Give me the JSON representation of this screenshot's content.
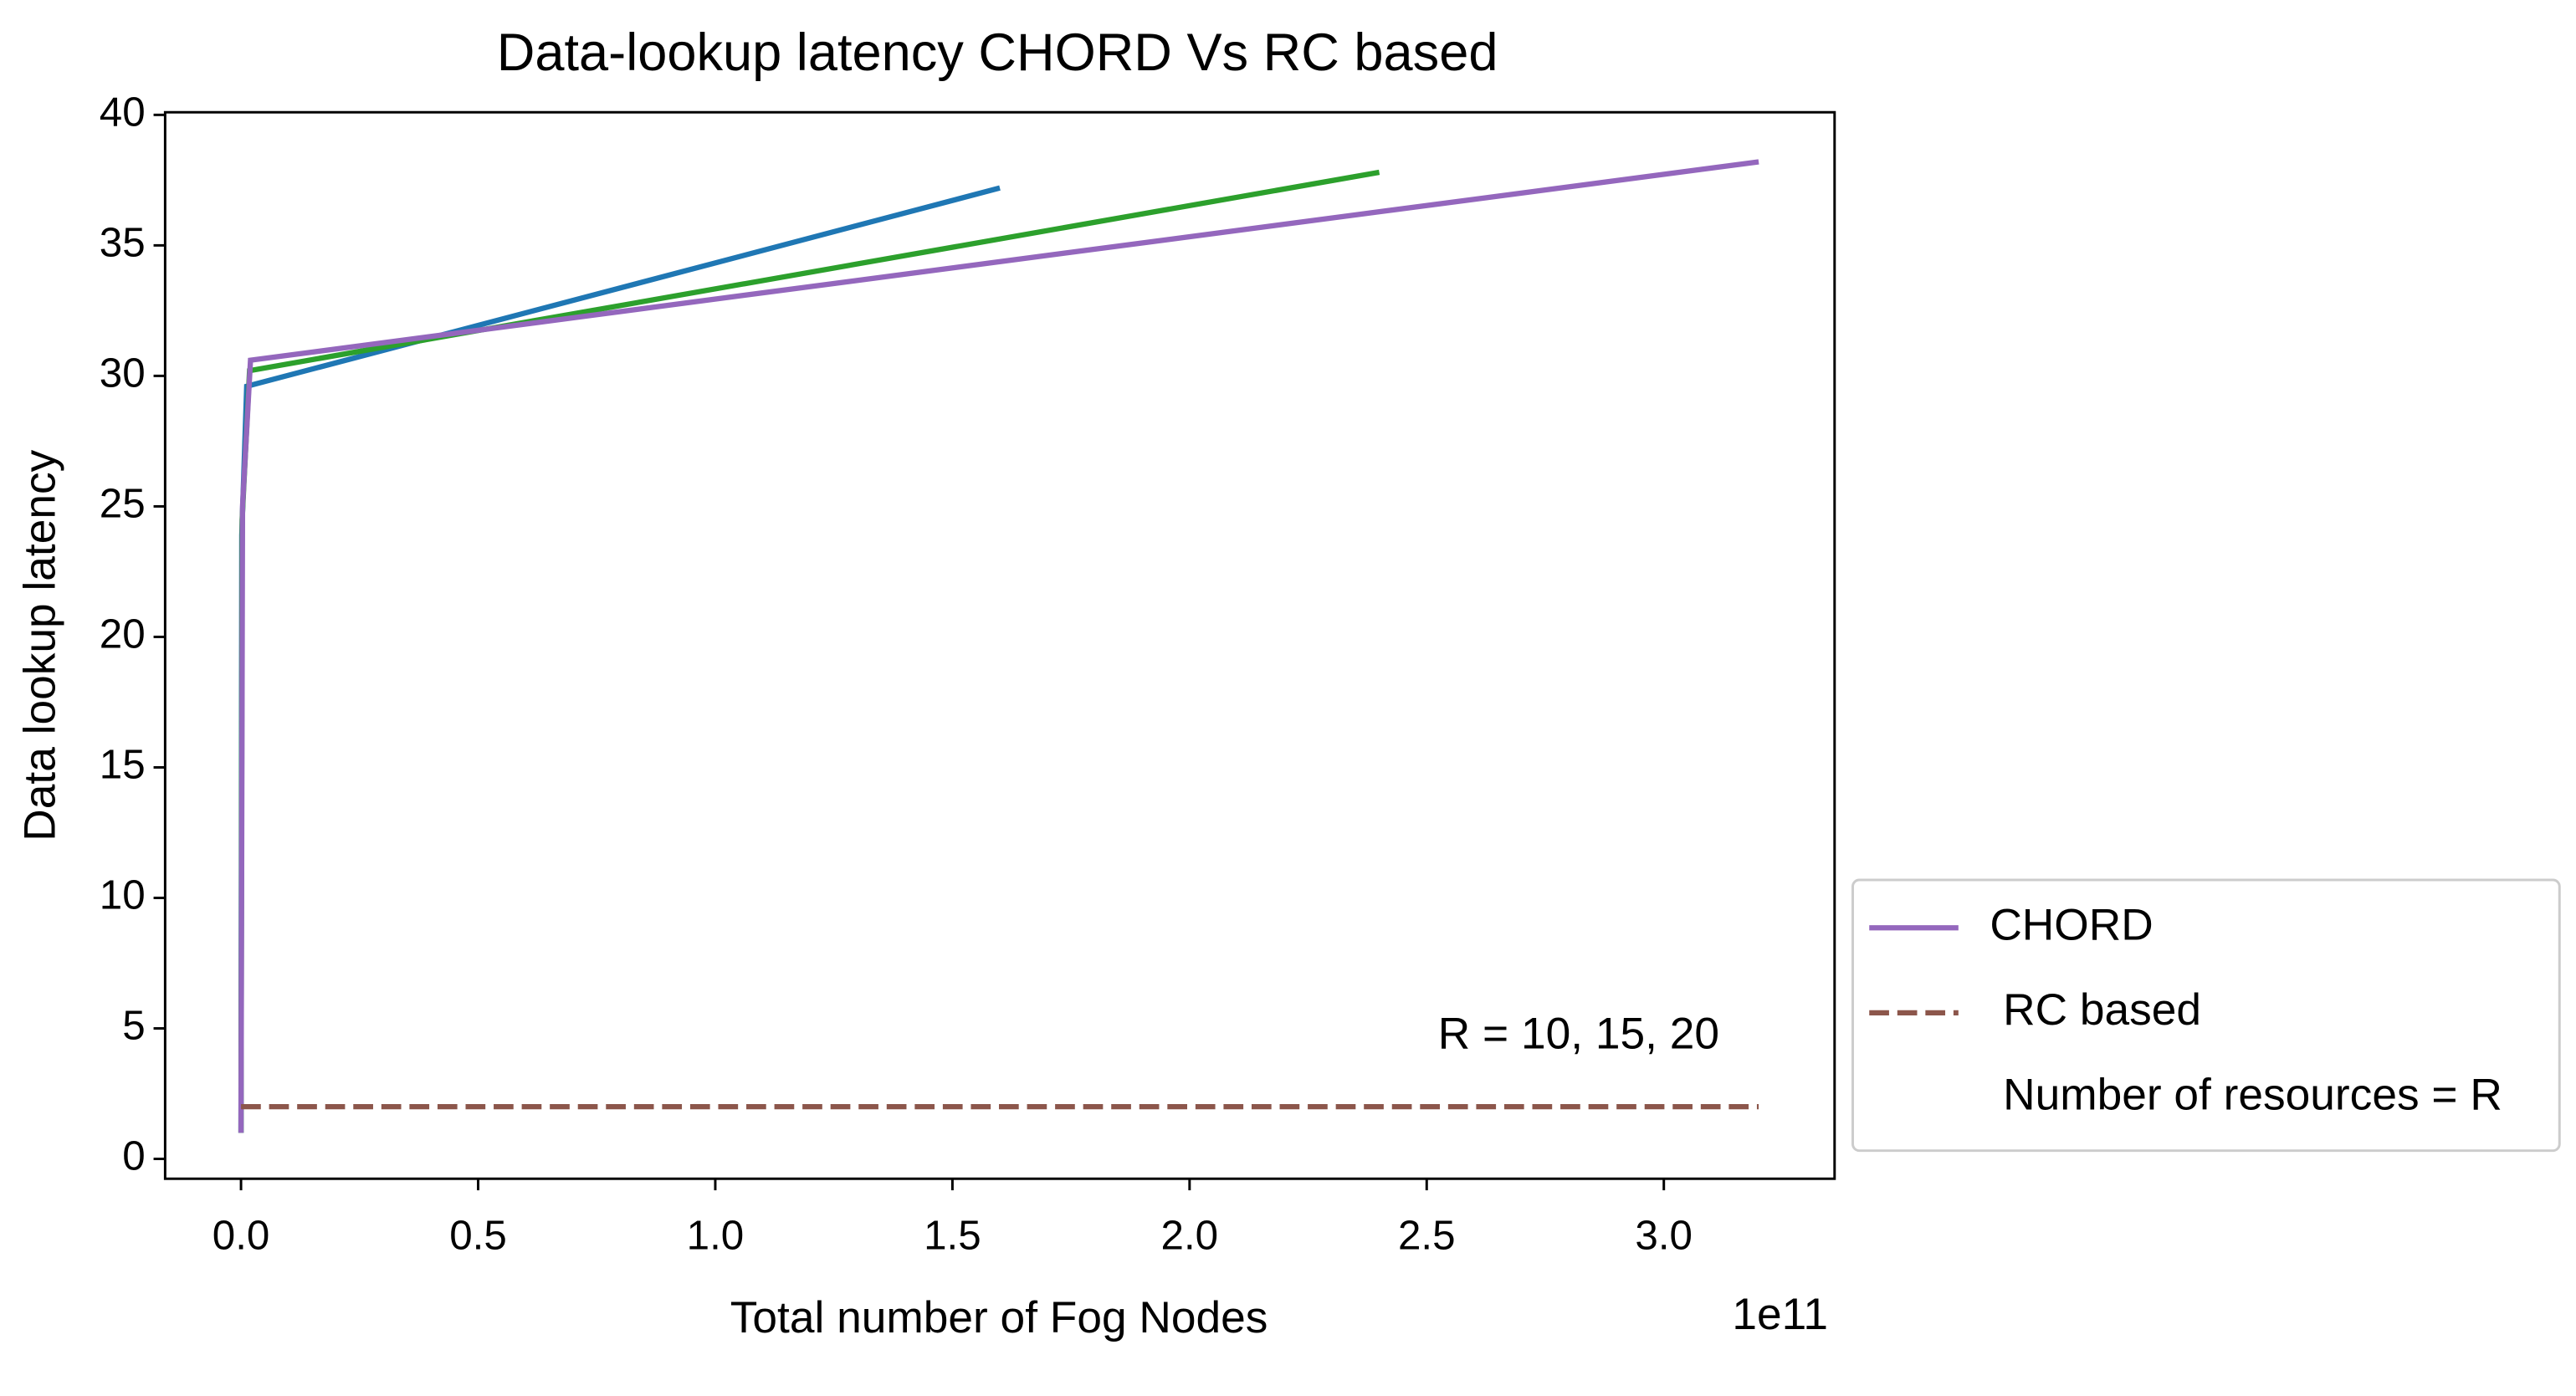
{
  "chart_data": {
    "type": "line",
    "title": "Data-lookup latency CHORD Vs RC based",
    "x_label": "Total number of Fog Nodes",
    "y_label": "Data lookup latency",
    "x_offset_label": "1e11",
    "annotation": "R = 10, 15, 20",
    "legend_note": "Number of resources = R",
    "legend_position": "outside-right-bottom",
    "xlim": [
      -0.16,
      3.36
    ],
    "ylim": [
      -0.76,
      40.1
    ],
    "xticks": [
      {
        "value": 0,
        "label": "0.0"
      },
      0.5,
      {
        "value": 1,
        "label": "1.0"
      },
      1.5,
      {
        "value": 2,
        "label": "2.0"
      },
      2.5,
      {
        "value": 3,
        "label": "3.0"
      }
    ],
    "yticks": [
      0,
      5,
      10,
      15,
      20,
      25,
      30,
      35,
      40
    ],
    "series": [
      {
        "color": "#1f77b4",
        "dash": false,
        "x": [
          0,
          0.0016,
          0.012,
          1.6
        ],
        "values": [
          1,
          23.9,
          29.6,
          37.2
        ]
      },
      {
        "color": "#2ca02c",
        "dash": false,
        "x": [
          0,
          0.0024,
          0.018,
          2.4
        ],
        "values": [
          1,
          24.5,
          30.2,
          37.8
        ]
      },
      {
        "name": "CHORD",
        "color": "#9467bd",
        "dash": false,
        "x": [
          0,
          0.0032,
          0.02,
          3.2
        ],
        "values": [
          1,
          25,
          30.6,
          38.2
        ]
      },
      {
        "name": "RC based",
        "color": "#8c564b",
        "dash": true,
        "x": [
          0,
          3.2
        ],
        "values": [
          2,
          2
        ]
      }
    ]
  }
}
